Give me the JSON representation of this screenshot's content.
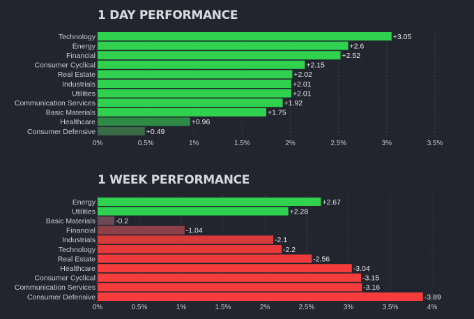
{
  "chart_data": [
    {
      "type": "bar",
      "orientation": "horizontal",
      "title": "1 DAY PERFORMANCE",
      "categories": [
        "Technology",
        "Energy",
        "Financial",
        "Consumer Cyclical",
        "Real Estate",
        "Industrials",
        "Utilities",
        "Communication Services",
        "Basic Materials",
        "Healthcare",
        "Consumer Defensive"
      ],
      "values": [
        3.05,
        2.6,
        2.52,
        2.15,
        2.02,
        2.01,
        2.01,
        1.92,
        1.75,
        0.96,
        0.49
      ],
      "value_labels": [
        "+3.05",
        "+2.6",
        "+2.52",
        "+2.15",
        "+2.02",
        "+2.01",
        "+2.01",
        "+1.92",
        "+1.75",
        "+0.96",
        "+0.49"
      ],
      "bar_colors": [
        "#2fd14e",
        "#2fd14e",
        "#2fd14e",
        "#2fd14e",
        "#2fd14e",
        "#2fd14e",
        "#2fd14e",
        "#2fd14e",
        "#2fd14e",
        "#2f8a46",
        "#3a6a48"
      ],
      "xlim": [
        0,
        3.5
      ],
      "xticks": [
        0,
        0.5,
        1,
        1.5,
        2,
        2.5,
        3,
        3.5
      ],
      "xtick_labels": [
        "0%",
        "0.5%",
        "1%",
        "1.5%",
        "2%",
        "2.5%",
        "3%",
        "3.5%"
      ],
      "grid": true
    },
    {
      "type": "bar",
      "orientation": "horizontal",
      "title": "1 WEEK PERFORMANCE",
      "categories": [
        "Energy",
        "Utilities",
        "Basic Materials",
        "Financial",
        "Industrials",
        "Technology",
        "Real Estate",
        "Healthcare",
        "Consumer Cyclical",
        "Communication Services",
        "Consumer Defensive"
      ],
      "values": [
        2.67,
        2.28,
        -0.2,
        -1.04,
        -2.1,
        -2.2,
        -2.56,
        -3.04,
        -3.15,
        -3.16,
        -3.89
      ],
      "value_labels": [
        "+2.67",
        "+2.28",
        "-0.2",
        "-1.04",
        "-2.1",
        "-2.2",
        "-2.56",
        "-3.04",
        "-3.15",
        "-3.16",
        "-3.89"
      ],
      "bar_colors": [
        "#2fd14e",
        "#2fd14e",
        "#6a4a55",
        "#8c4048",
        "#d83a3a",
        "#e83a3a",
        "#ef3b3b",
        "#f43c3c",
        "#f43c3c",
        "#f43c3c",
        "#f73c3c"
      ],
      "xlim": [
        0,
        4
      ],
      "xticks": [
        0,
        0.5,
        1,
        1.5,
        2,
        2.5,
        3,
        3.5,
        4
      ],
      "xtick_labels": [
        "0%",
        "0.5%",
        "1%",
        "1.5%",
        "2%",
        "2.5%",
        "3%",
        "3.5%",
        "4%"
      ],
      "x_scale_note": "bars drawn by magnitude",
      "grid": true
    }
  ],
  "colors": {
    "background": "#22252e",
    "grid": "#3a3e4a",
    "label": "#c9ccd4",
    "value_label": "#e6e8ec"
  }
}
